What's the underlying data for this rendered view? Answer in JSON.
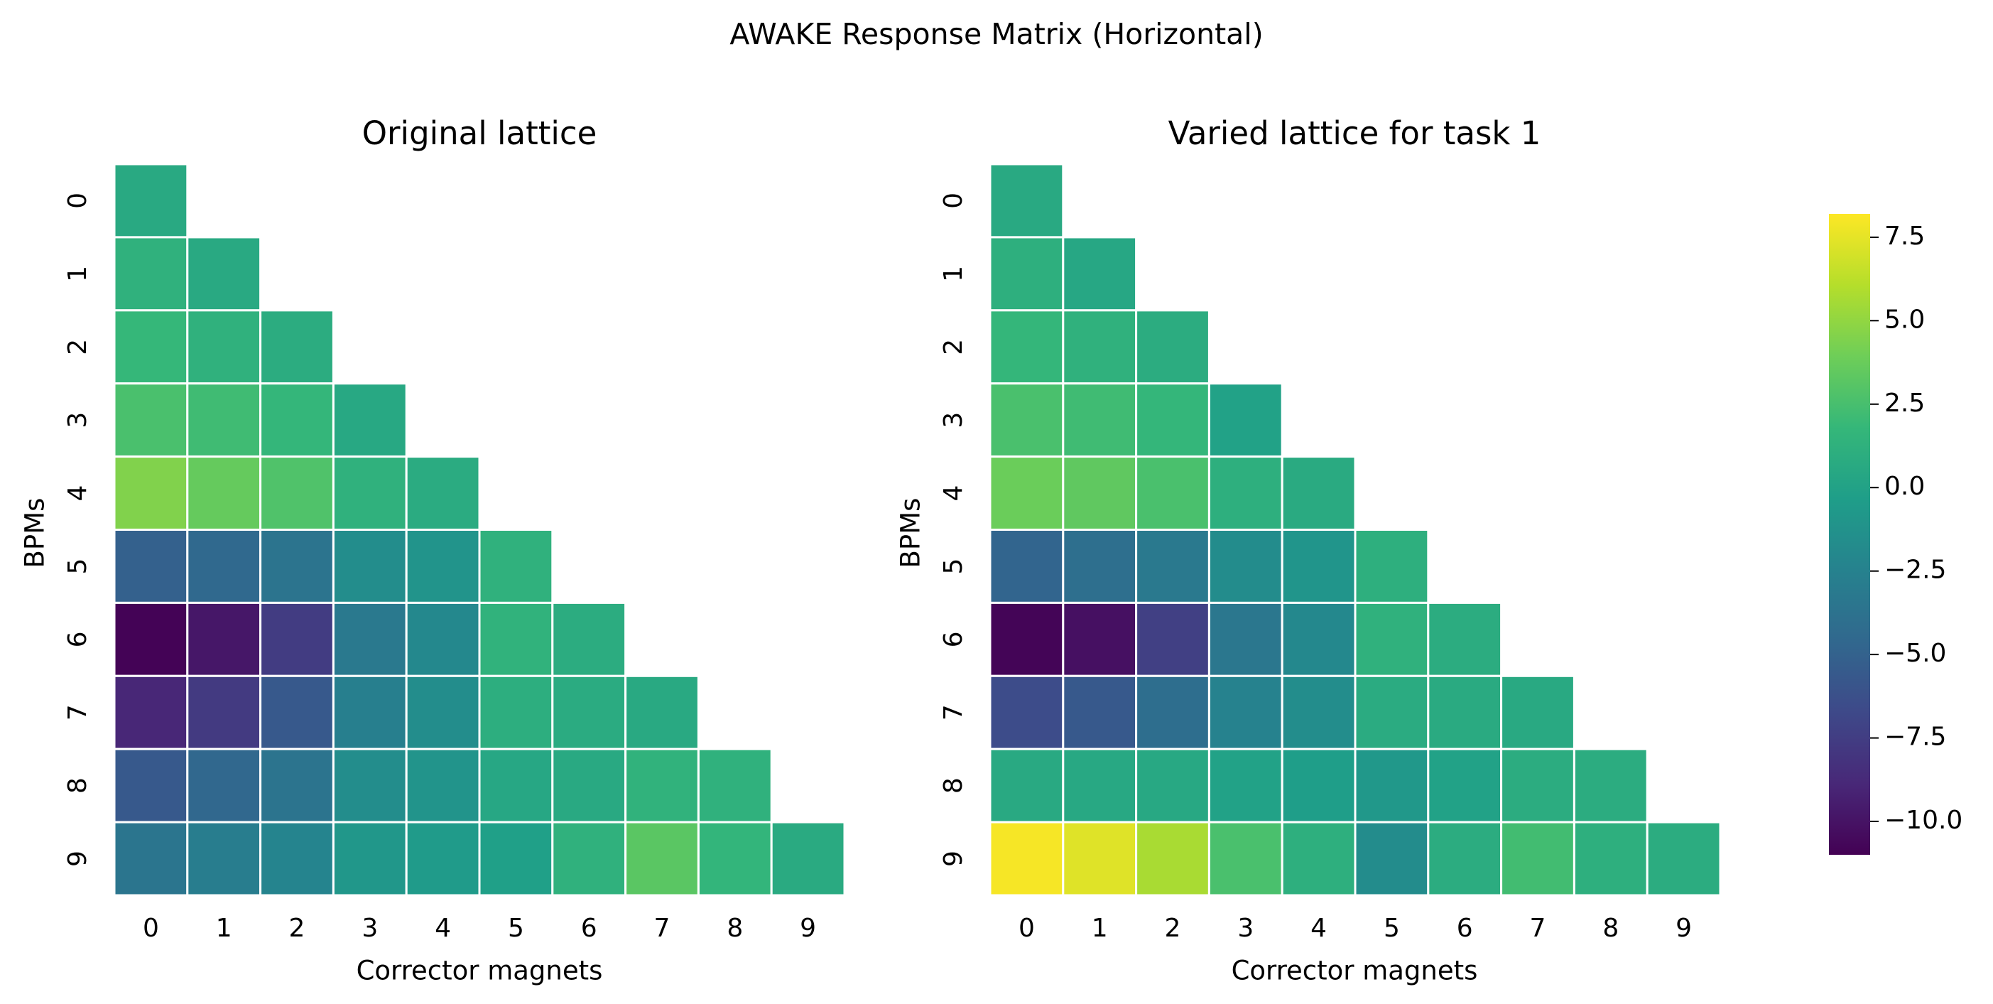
{
  "figure_title": "AWAKE Response Matrix (Horizontal)",
  "colormap": "viridis",
  "chart_data": [
    {
      "type": "heatmap",
      "title": "Original lattice",
      "xlabel": "Corrector magnets",
      "ylabel": "BPMs",
      "x_categories": [
        "0",
        "1",
        "2",
        "3",
        "4",
        "5",
        "6",
        "7",
        "8",
        "9"
      ],
      "y_categories": [
        "0",
        "1",
        "2",
        "3",
        "4",
        "5",
        "6",
        "7",
        "8",
        "9"
      ],
      "mask": "upper triangle (only cells with column <= row are shown)",
      "values": [
        [
          0.6
        ],
        [
          1.3,
          0.6
        ],
        [
          1.8,
          1.3,
          0.9
        ],
        [
          2.6,
          2.2,
          1.7,
          0.5
        ],
        [
          4.5,
          3.6,
          2.8,
          1.3,
          0.8
        ],
        [
          -5.1,
          -4.5,
          -3.6,
          -1.6,
          -1.1,
          1.3
        ],
        [
          -10.9,
          -9.8,
          -7.6,
          -3.2,
          -2.0,
          1.4,
          0.9
        ],
        [
          -8.9,
          -7.7,
          -5.6,
          -2.7,
          -1.6,
          1.0,
          0.8,
          0.6
        ],
        [
          -5.6,
          -4.6,
          -3.6,
          -1.6,
          -1.1,
          0.4,
          0.6,
          1.4,
          1.3
        ],
        [
          -3.5,
          -2.9,
          -2.3,
          -0.9,
          -0.6,
          -0.2,
          1.3,
          3.2,
          1.6,
          0.7
        ]
      ]
    },
    {
      "type": "heatmap",
      "title": "Varied lattice for task 1",
      "xlabel": "Corrector magnets",
      "ylabel": "BPMs",
      "x_categories": [
        "0",
        "1",
        "2",
        "3",
        "4",
        "5",
        "6",
        "7",
        "8",
        "9"
      ],
      "y_categories": [
        "0",
        "1",
        "2",
        "3",
        "4",
        "5",
        "6",
        "7",
        "8",
        "9"
      ],
      "mask": "upper triangle (only cells with column <= row are shown)",
      "values": [
        [
          0.6
        ],
        [
          1.1,
          0.4
        ],
        [
          1.7,
          1.3,
          0.9
        ],
        [
          2.6,
          2.2,
          1.7,
          0.0
        ],
        [
          3.8,
          3.4,
          2.6,
          1.1,
          0.7
        ],
        [
          -4.8,
          -4.0,
          -3.2,
          -1.7,
          -1.0,
          1.1
        ],
        [
          -10.8,
          -10.2,
          -7.3,
          -3.4,
          -2.0,
          1.3,
          0.9
        ],
        [
          -6.5,
          -5.6,
          -4.1,
          -2.5,
          -1.6,
          0.8,
          0.7,
          0.6
        ],
        [
          0.6,
          0.5,
          0.5,
          0.0,
          -0.3,
          -0.8,
          0.0,
          0.9,
          0.9
        ],
        [
          8.0,
          7.3,
          5.7,
          2.6,
          1.1,
          -1.7,
          0.9,
          2.3,
          1.1,
          0.9
        ]
      ]
    }
  ],
  "colorbar": {
    "vmin": -11.0,
    "vmax": 8.2,
    "ticks": [
      7.5,
      5.0,
      2.5,
      0.0,
      -2.5,
      -5.0,
      -7.5,
      -10.0
    ],
    "tick_labels": [
      "7.5",
      "5.0",
      "2.5",
      "0.0",
      "−2.5",
      "−5.0",
      "−7.5",
      "−10.0"
    ]
  }
}
